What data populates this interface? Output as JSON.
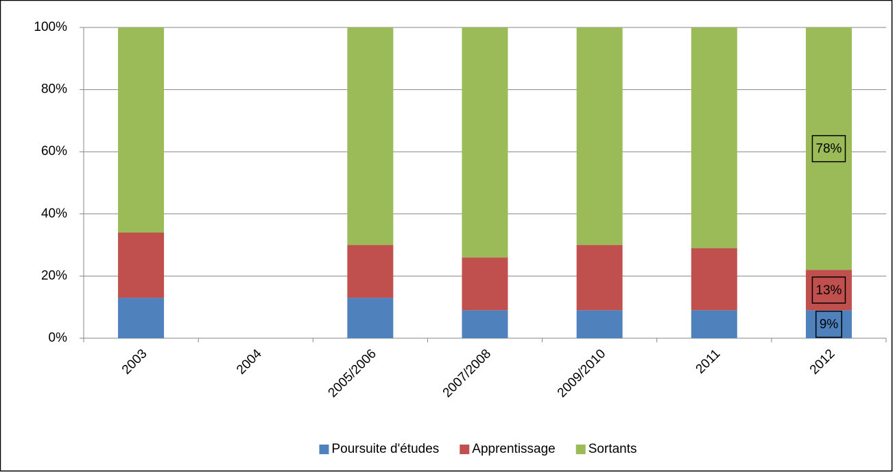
{
  "chart_data": {
    "type": "bar",
    "stacked": true,
    "categories": [
      "2003",
      "2004",
      "2005/2006",
      "2007/2008",
      "2009/2010",
      "2011",
      "2012"
    ],
    "series": [
      {
        "name": "Poursuite d'études",
        "color": "#4f81bd",
        "values": [
          13,
          null,
          13,
          9,
          9,
          9,
          9
        ],
        "value_labels": [
          null,
          null,
          null,
          null,
          null,
          null,
          "9%"
        ]
      },
      {
        "name": "Apprentissage",
        "color": "#c0504d",
        "values": [
          21,
          null,
          17,
          17,
          21,
          20,
          13
        ],
        "value_labels": [
          null,
          null,
          null,
          null,
          null,
          null,
          "13%"
        ]
      },
      {
        "name": "Sortants",
        "color": "#9bbb59",
        "values": [
          66,
          null,
          70,
          74,
          70,
          71,
          78
        ],
        "value_labels": [
          null,
          null,
          null,
          null,
          null,
          null,
          "78%"
        ]
      }
    ],
    "ylim": [
      0,
      100
    ],
    "yticks": [
      {
        "value": 0,
        "label": "0%"
      },
      {
        "value": 20,
        "label": "20%"
      },
      {
        "value": 40,
        "label": "40%"
      },
      {
        "value": 60,
        "label": "60%"
      },
      {
        "value": 80,
        "label": "80%"
      },
      {
        "value": 100,
        "label": "100%"
      }
    ],
    "grid": true,
    "legend": "bottom"
  }
}
